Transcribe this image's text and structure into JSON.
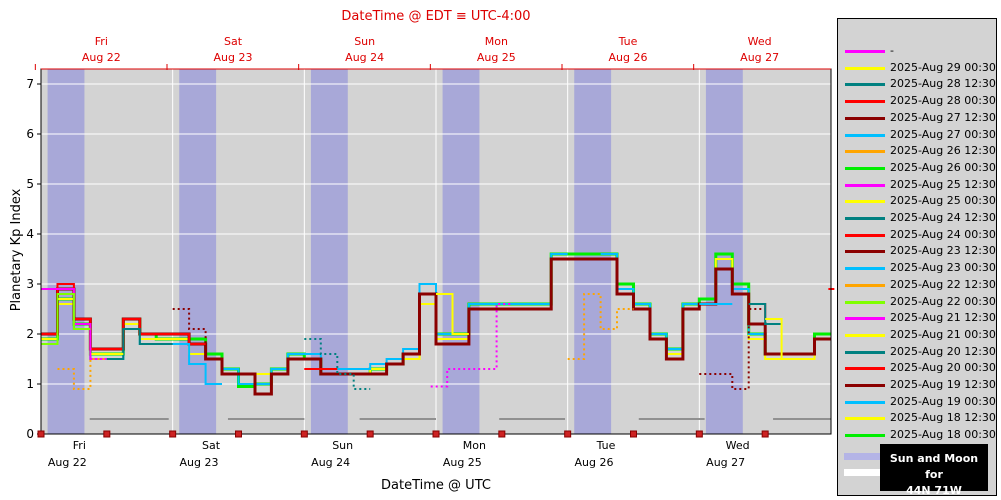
{
  "chart_data": {
    "type": "line",
    "title_top": "DateTime @ EDT ≡ UTC-4:00",
    "xlabel": "DateTime @ UTC",
    "ylabel": "Planetary Kp Index",
    "ylim": [
      0,
      7.3
    ],
    "yticks": [
      0,
      1,
      2,
      3,
      4,
      5,
      6,
      7
    ],
    "x_range_days": [
      0,
      6.0
    ],
    "days": [
      {
        "dow": "Fri",
        "date": "Aug 22",
        "mid": 0.5
      },
      {
        "dow": "Sat",
        "date": "Aug 23",
        "mid": 1.5
      },
      {
        "dow": "Sun",
        "date": "Aug 24",
        "mid": 2.5
      },
      {
        "dow": "Mon",
        "date": "Aug 25",
        "mid": 3.5
      },
      {
        "dow": "Tue",
        "date": "Aug 26",
        "mid": 4.5
      },
      {
        "dow": "Wed",
        "date": "Aug 27",
        "mid": 5.5
      }
    ],
    "night_bands": [
      [
        0.05,
        0.33
      ],
      [
        1.05,
        1.33
      ],
      [
        2.05,
        2.33
      ],
      [
        3.05,
        3.33
      ],
      [
        4.05,
        4.33
      ],
      [
        5.05,
        5.33
      ]
    ],
    "moon_bars": [
      [
        0.37,
        0.97
      ],
      [
        1.42,
        2.0
      ],
      [
        2.42,
        3.0
      ],
      [
        3.48,
        3.98
      ],
      [
        4.54,
        5.04
      ],
      [
        5.56,
        6.0
      ]
    ],
    "moon_level": 0.3,
    "edt_offset_hours": -4,
    "series": [
      {
        "name": "2025-Aug 18 00:30",
        "color": "#00ee00",
        "dash": false,
        "width": 3,
        "start": 0.0,
        "values": [
          1.9,
          2.7,
          2.2,
          1.6,
          1.6,
          2.3,
          2.0,
          1.9,
          1.9,
          1.9,
          1.6,
          1.3,
          0.95,
          1.0,
          1.3,
          1.6,
          1.5,
          1.2,
          1.2,
          1.2,
          1.3,
          1.4,
          1.6,
          2.8,
          2.0,
          2.0,
          2.6,
          2.6,
          2.6,
          2.6,
          2.6,
          3.6,
          3.6,
          3.6,
          3.6,
          3.0,
          2.6,
          2.0,
          1.7,
          2.6,
          2.7,
          3.6,
          3.0,
          2.0,
          1.6,
          1.6,
          1.6,
          2.0
        ]
      },
      {
        "name": "2025-Aug 18 12:30",
        "color": "#ffff00",
        "dash": false,
        "width": 2,
        "start": 0.0,
        "values": [
          1.9,
          2.6,
          2.2,
          1.6,
          1.6,
          2.2,
          1.9,
          1.9,
          1.9,
          1.6,
          1.5,
          1.2,
          1.2,
          1.2,
          1.3,
          1.5,
          1.5,
          1.2,
          1.2,
          1.2,
          1.3,
          1.4,
          1.5,
          2.6,
          1.9,
          1.9,
          2.5,
          2.5,
          2.5,
          2.5,
          2.5,
          3.5,
          3.5,
          3.5,
          3.5,
          2.8,
          2.5,
          1.9,
          1.6,
          2.5,
          2.6,
          3.5,
          2.9,
          1.9,
          1.5,
          1.5,
          1.5,
          1.9
        ]
      },
      {
        "name": "2025-Aug 19 00:30",
        "color": "#00bfff",
        "dash": false,
        "width": 2,
        "start": 0.0,
        "values": [
          1.8,
          2.8,
          2.1,
          1.5,
          1.5,
          2.1,
          1.8,
          1.8,
          1.8,
          1.8,
          1.5,
          1.3,
          1.0,
          1.0,
          1.3,
          1.6,
          1.6,
          1.3,
          1.3,
          1.3,
          1.4,
          1.5,
          1.7,
          3.0,
          2.0,
          2.0,
          2.6,
          2.6,
          2.6,
          2.6,
          2.6,
          3.6,
          3.6,
          3.6,
          3.6,
          2.9,
          2.6,
          2.0,
          1.7,
          2.6,
          2.6,
          3.3,
          2.9,
          2.0,
          1.6,
          1.6,
          1.6,
          1.9
        ]
      },
      {
        "name": "2025-Aug 19 12:30",
        "color": "#8b0000",
        "dash": false,
        "width": 3,
        "start": 0.0,
        "values": [
          2.0,
          2.9,
          2.3,
          1.7,
          1.7,
          2.3,
          2.0,
          2.0,
          2.0,
          1.8,
          1.5,
          1.2,
          1.2,
          0.8,
          1.2,
          1.5,
          1.5,
          1.2,
          1.2,
          1.2,
          1.2,
          1.4,
          1.6,
          2.8,
          1.8,
          1.8,
          2.5,
          2.5,
          2.5,
          2.5,
          2.5,
          3.5,
          3.5,
          3.5,
          3.5,
          2.8,
          2.5,
          1.9,
          1.5,
          2.5,
          2.6,
          3.3,
          2.8,
          2.2,
          1.6,
          1.6,
          1.6,
          1.9
        ]
      },
      {
        "name": "2025-Aug 20 00:30",
        "color": "#ff0000",
        "dash": false,
        "width": 2,
        "start": 0.0,
        "values": [
          2.0,
          3.0,
          2.3,
          1.7,
          1.7,
          2.3,
          2.0,
          2.0,
          2.0,
          1.8
        ]
      },
      {
        "name": "2025-Aug 20 12:30",
        "color": "#008080",
        "dash": false,
        "width": 2,
        "start": 0.0,
        "values": [
          1.8,
          2.8,
          2.1,
          1.5,
          1.5,
          2.1,
          1.8,
          1.8
        ]
      },
      {
        "name": "2025-Aug 21 00:30",
        "color": "#ffff00",
        "dash": false,
        "width": 2,
        "start": 0.0,
        "values": [
          1.9,
          2.7,
          2.2,
          1.6,
          1.6
        ]
      },
      {
        "name": "2025-Aug 21 12:30",
        "color": "#ff00ff",
        "dash": false,
        "width": 2,
        "start": 0.0,
        "values": [
          2.9,
          2.9,
          2.2,
          1.5
        ]
      },
      {
        "name": "2025-Aug 22 00:30",
        "color": "#7fff00",
        "dash": false,
        "width": 2,
        "start": 0.0,
        "values": [
          1.8,
          2.8,
          2.1
        ]
      },
      {
        "name": "2025-Aug 22 12:30",
        "color": "#ffa500",
        "dash": true,
        "width": 2,
        "start": 0.125,
        "values": [
          1.3,
          0.9,
          1.5
        ]
      },
      {
        "name": "2025-Aug 23 00:30",
        "color": "#00bfff",
        "dash": false,
        "width": 2,
        "start": 1.0,
        "values": [
          1.8,
          1.4,
          1.0
        ]
      },
      {
        "name": "2025-Aug 23 12:30",
        "color": "#8b0000",
        "dash": true,
        "width": 2,
        "start": 1.0,
        "values": [
          2.5,
          2.1,
          1.5,
          1.2
        ]
      },
      {
        "name": "2025-Aug 24 00:30",
        "color": "#ff0000",
        "dash": false,
        "width": 2,
        "start": 2.0,
        "values": [
          1.3,
          1.3
        ]
      },
      {
        "name": "2025-Aug 24 12:30",
        "color": "#008080",
        "dash": true,
        "width": 2,
        "start": 2.0,
        "values": [
          1.9,
          1.6,
          1.2,
          0.9
        ]
      },
      {
        "name": "2025-Aug 25 00:30",
        "color": "#ffff00",
        "dash": false,
        "width": 2,
        "start": 3.0,
        "values": [
          2.8,
          2.0
        ]
      },
      {
        "name": "2025-Aug 25 12:30",
        "color": "#ff00ff",
        "dash": true,
        "width": 2,
        "start": 2.96,
        "values": [
          0.95,
          1.3,
          1.3,
          1.3,
          2.6
        ]
      },
      {
        "name": "2025-Aug 26 00:30",
        "color": "#00ee00",
        "dash": false,
        "width": 2,
        "start": 4.0,
        "values": [
          3.6,
          3.6
        ]
      },
      {
        "name": "2025-Aug 26 12:30",
        "color": "#ffa500",
        "dash": true,
        "width": 2,
        "start": 4.0,
        "values": [
          1.5,
          2.8,
          2.1,
          2.5
        ]
      },
      {
        "name": "2025-Aug 27 00:30",
        "color": "#00bfff",
        "dash": false,
        "width": 2,
        "start": 5.0,
        "values": [
          2.6,
          2.6
        ]
      },
      {
        "name": "2025-Aug 27 12:30",
        "color": "#8b0000",
        "dash": true,
        "width": 2,
        "start": 5.0,
        "values": [
          1.2,
          1.2,
          0.9,
          2.5
        ]
      },
      {
        "name": "2025-Aug 28 00:30",
        "color": "#ff0000",
        "dash": false,
        "width": 2,
        "start": 5.375,
        "values": [
          2.6,
          2.3
        ]
      },
      {
        "name": "2025-Aug 28 12:30",
        "color": "#008080",
        "dash": false,
        "width": 2,
        "start": 5.375,
        "values": [
          2.6,
          2.2
        ]
      },
      {
        "name": "2025-Aug 29 00:30",
        "color": "#ffff00",
        "dash": false,
        "width": 2,
        "start": 5.5,
        "values": [
          2.3,
          1.5
        ]
      },
      {
        "name": "-",
        "color": "#ff00ff",
        "dash": false,
        "width": 2,
        "start": 5.5,
        "values": []
      }
    ],
    "red_dash": {
      "x": 5.98,
      "y": 2.9
    }
  },
  "legend": {
    "entries": [
      {
        "label": "-",
        "color": "#ff00ff"
      },
      {
        "label": "2025-Aug 29 00:30",
        "color": "#ffff00"
      },
      {
        "label": "2025-Aug 28 12:30",
        "color": "#008080"
      },
      {
        "label": "2025-Aug 28 00:30",
        "color": "#ff0000"
      },
      {
        "label": "2025-Aug 27 12:30",
        "color": "#8b0000"
      },
      {
        "label": "2025-Aug 27 00:30",
        "color": "#00bfff"
      },
      {
        "label": "2025-Aug 26 12:30",
        "color": "#ffa500"
      },
      {
        "label": "2025-Aug 26 00:30",
        "color": "#00ee00"
      },
      {
        "label": "2025-Aug 25 12:30",
        "color": "#ff00ff"
      },
      {
        "label": "2025-Aug 25 00:30",
        "color": "#ffff00"
      },
      {
        "label": "2025-Aug 24 12:30",
        "color": "#008080"
      },
      {
        "label": "2025-Aug 24 00:30",
        "color": "#ff0000"
      },
      {
        "label": "2025-Aug 23 12:30",
        "color": "#8b0000"
      },
      {
        "label": "2025-Aug 23 00:30",
        "color": "#00bfff"
      },
      {
        "label": "2025-Aug 22 12:30",
        "color": "#ffa500"
      },
      {
        "label": "2025-Aug 22 00:30",
        "color": "#7fff00"
      },
      {
        "label": "2025-Aug 21 12:30",
        "color": "#ff00ff"
      },
      {
        "label": "2025-Aug 21 00:30",
        "color": "#ffff00"
      },
      {
        "label": "2025-Aug 20 12:30",
        "color": "#008080"
      },
      {
        "label": "2025-Aug 20 00:30",
        "color": "#ff0000"
      },
      {
        "label": "2025-Aug 19 12:30",
        "color": "#8b0000"
      },
      {
        "label": "2025-Aug 19 00:30",
        "color": "#00bfff"
      },
      {
        "label": "2025-Aug 18 12:30",
        "color": "#ffff00"
      },
      {
        "label": "2025-Aug 18 00:30",
        "color": "#00ee00"
      }
    ],
    "sun_moon_line1": "Sun and Moon for",
    "sun_moon_line2": "44N 71W"
  },
  "colors": {
    "plot_bg": "#d3d3d3",
    "night": "#a8a8d8",
    "moon": "#909090",
    "edt_axis": "#dd0000",
    "marker": "#cc2222"
  }
}
